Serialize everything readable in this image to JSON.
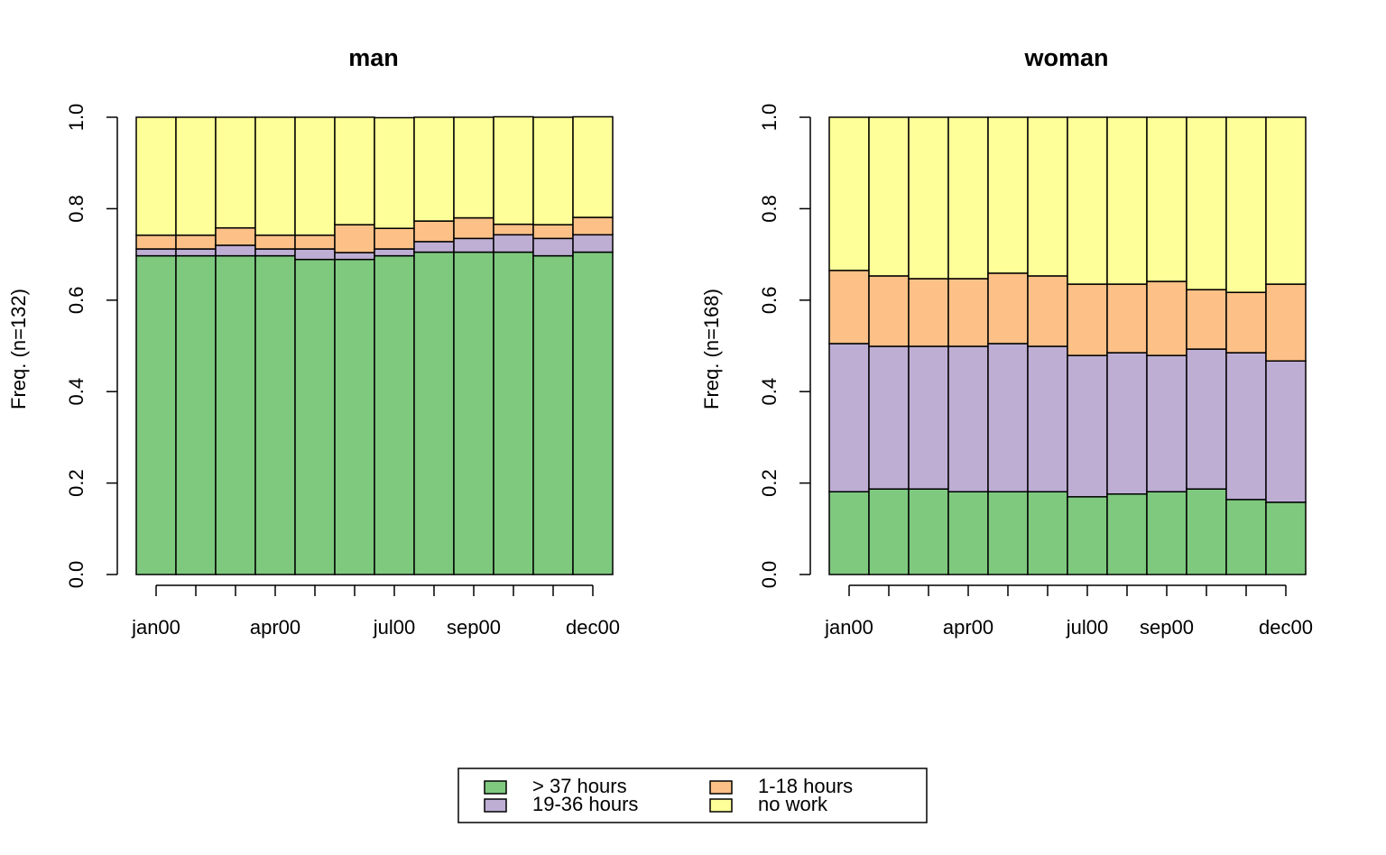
{
  "chart_data": [
    {
      "type": "stacked-bar",
      "title": "man",
      "ylabel": "Freq. (n=132)",
      "categories": [
        "jan00",
        null,
        null,
        "apr00",
        null,
        null,
        "jul00",
        null,
        "sep00",
        null,
        null,
        "dec00"
      ],
      "ylim": [
        0,
        1
      ],
      "yticks": [
        {
          "value": 0,
          "label": "0.0"
        },
        0.2,
        0.4,
        0.6,
        0.8,
        {
          "value": 1,
          "label": "1.0"
        }
      ],
      "series": [
        {
          "name": "> 37 hours",
          "color": "#7fc97f",
          "values": [
            0.697,
            0.697,
            0.697,
            0.697,
            0.689,
            0.689,
            0.697,
            0.705,
            0.705,
            0.705,
            0.697,
            0.705
          ]
        },
        {
          "name": "19-36 hours",
          "color": "#beaed4",
          "values": [
            0.015,
            0.015,
            0.023,
            0.015,
            0.023,
            0.015,
            0.015,
            0.023,
            0.03,
            0.038,
            0.038,
            0.038
          ]
        },
        {
          "name": "1-18 hours",
          "color": "#fdc086",
          "values": [
            0.03,
            0.03,
            0.038,
            0.03,
            0.03,
            0.061,
            0.045,
            0.045,
            0.045,
            0.023,
            0.03,
            0.038
          ]
        },
        {
          "name": "no work",
          "color": "#ffff99",
          "values": [
            0.258,
            0.258,
            0.242,
            0.258,
            0.258,
            0.235,
            0.242,
            0.227,
            0.22,
            0.235,
            0.235,
            0.22
          ]
        }
      ]
    },
    {
      "type": "stacked-bar",
      "title": "woman",
      "ylabel": "Freq. (n=168)",
      "categories": [
        "jan00",
        null,
        null,
        "apr00",
        null,
        null,
        "jul00",
        null,
        "sep00",
        null,
        null,
        "dec00"
      ],
      "ylim": [
        0,
        1
      ],
      "yticks": [
        {
          "value": 0,
          "label": "0.0"
        },
        0.2,
        0.4,
        0.6,
        0.8,
        {
          "value": 1,
          "label": "1.0"
        }
      ],
      "series": [
        {
          "name": "> 37 hours",
          "color": "#7fc97f",
          "values": [
            0.181,
            0.187,
            0.187,
            0.181,
            0.181,
            0.181,
            0.17,
            0.176,
            0.181,
            0.187,
            0.164,
            0.158
          ]
        },
        {
          "name": "19-36 hours",
          "color": "#beaed4",
          "values": [
            0.324,
            0.312,
            0.312,
            0.318,
            0.324,
            0.318,
            0.309,
            0.309,
            0.298,
            0.306,
            0.321,
            0.309
          ]
        },
        {
          "name": "1-18 hours",
          "color": "#fdc086",
          "values": [
            0.16,
            0.154,
            0.148,
            0.148,
            0.154,
            0.154,
            0.156,
            0.15,
            0.162,
            0.13,
            0.132,
            0.168
          ]
        },
        {
          "name": "no work",
          "color": "#ffff99",
          "values": [
            0.335,
            0.347,
            0.353,
            0.353,
            0.341,
            0.347,
            0.365,
            0.365,
            0.359,
            0.377,
            0.383,
            0.365
          ]
        }
      ]
    }
  ]
}
